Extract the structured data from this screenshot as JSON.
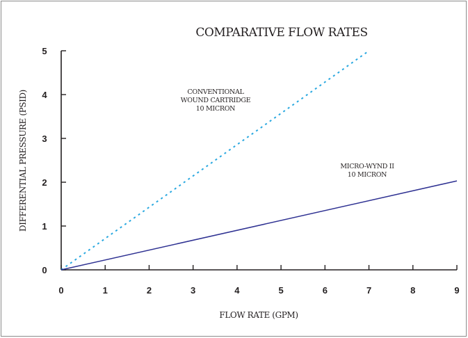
{
  "chart_data": {
    "type": "line",
    "title": "COMPARATIVE FLOW RATES",
    "xlabel": "FLOW RATE (GPM)",
    "ylabel": "DIFFERENTIAL PRESSURE (PSID)",
    "xlim": [
      0,
      9
    ],
    "ylim": [
      0,
      5
    ],
    "xticks": [
      0,
      1,
      2,
      3,
      4,
      5,
      6,
      7,
      8,
      9
    ],
    "yticks": [
      0,
      1,
      2,
      3,
      4,
      5
    ],
    "grid": false,
    "legend": "none",
    "series": [
      {
        "name": "CONVENTIONAL WOUND CARTRIDGE 10 MICRON",
        "style": "dotted",
        "color": "#29a8e0",
        "x": [
          0,
          7
        ],
        "y": [
          0,
          5
        ]
      },
      {
        "name": "MICRO-WYND II 10 MICRON",
        "style": "solid",
        "color": "#2e3192",
        "x": [
          0,
          9
        ],
        "y": [
          0,
          2.03
        ]
      }
    ],
    "annotations": [
      {
        "series": 0,
        "lines": [
          "CONVENTIONAL",
          "WOUND CARTRIDGE",
          "10 MICRON"
        ]
      },
      {
        "series": 1,
        "lines": [
          "MICRO-WYND II",
          "10 MICRON"
        ]
      }
    ]
  }
}
